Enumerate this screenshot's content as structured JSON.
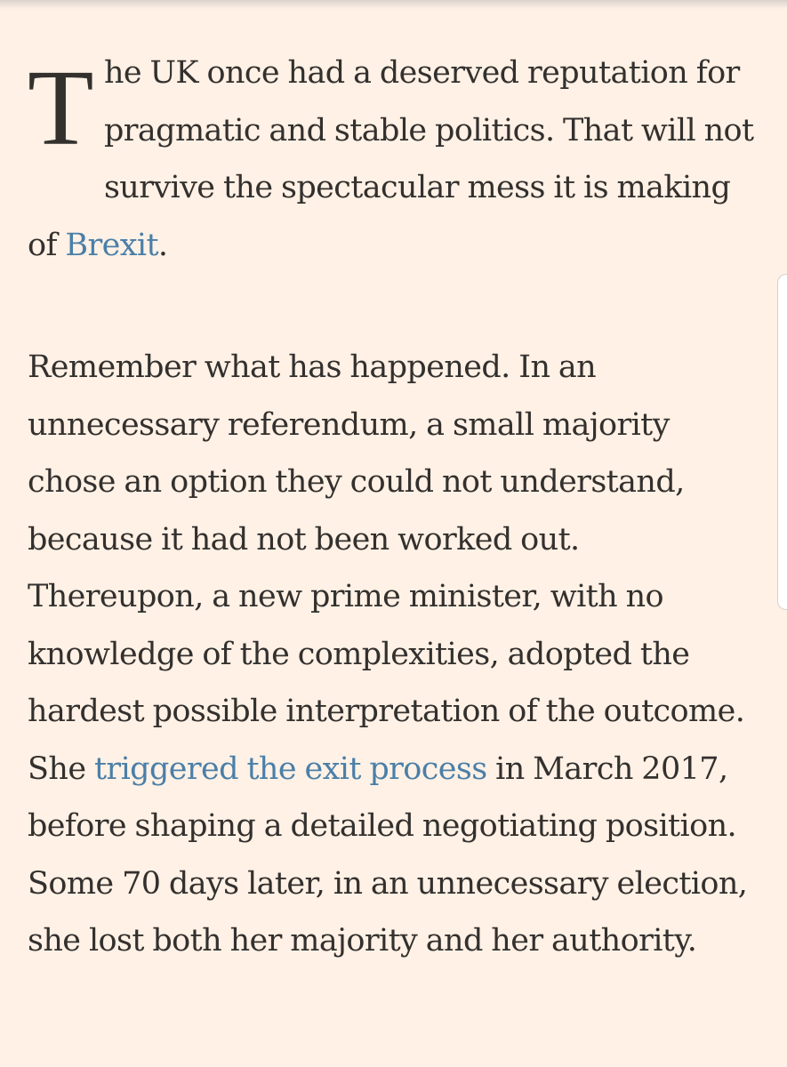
{
  "article": {
    "paragraph_1": {
      "drop_cap": "T",
      "text_before_link": "he UK once had a deserved reputation for pragmatic and stable politics. That will not survive the spectacular mess it is making of ",
      "link_text": "Brexit",
      "text_after_link": "."
    },
    "paragraph_2": {
      "text_before_link": "Remember what has happened. In an unnecessary referendum, a small majority chose an option they could not understand, because it had not been worked out. Thereupon, a new prime minister, with no knowledge of the complexities, adopted the hardest possible interpretation of the outcome. She ",
      "link_text": "triggered the exit process",
      "text_after_link": " in March 2017, before shaping a detailed negotiating position. Some 70 days later, in an unnecessary election, she lost both her majority and her authority."
    }
  },
  "colors": {
    "background": "#fff1e5",
    "text": "#33302e",
    "link": "#4a7fa8"
  }
}
